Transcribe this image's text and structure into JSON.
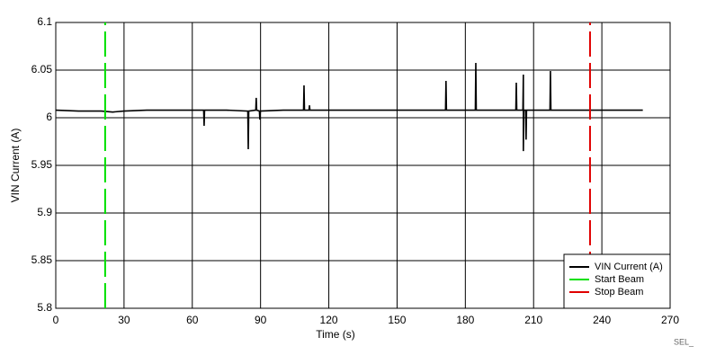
{
  "chart_data": {
    "type": "line",
    "xlabel": "Time (s)",
    "ylabel": "VIN Current (A)",
    "annotation": "SEL_",
    "xlim": [
      0,
      270
    ],
    "xticks": [
      0,
      30,
      60,
      90,
      120,
      150,
      180,
      210,
      240,
      270
    ],
    "ylim": [
      5.8,
      6.1
    ],
    "yticks": [
      6.1,
      6.05,
      6,
      5.95,
      5.9,
      5.85,
      5.8
    ],
    "grid": true,
    "legend": "lower right",
    "series": [
      {
        "name": "VIN Current (A)",
        "color": "#000000",
        "dashed": false,
        "x": [
          0,
          10,
          20,
          25,
          30,
          40,
          50,
          60,
          65,
          65.2,
          65.4,
          75,
          84.4,
          84.6,
          84.8,
          87.9,
          88.1,
          88.3,
          89.5,
          89.7,
          89.9,
          100,
          108.9,
          109.1,
          109.3,
          111.3,
          111.5,
          111.7,
          130,
          150,
          171.3,
          171.5,
          171.7,
          184.4,
          184.6,
          184.8,
          202.2,
          202.4,
          202.6,
          205.3,
          205.5,
          205.5,
          205.7,
          206.5,
          206.7,
          206.9,
          217.2,
          217.4,
          217.6,
          230,
          258
        ],
        "values": [
          6.008,
          6.007,
          6.007,
          6.006,
          6.007,
          6.008,
          6.008,
          6.008,
          6.008,
          5.9915,
          6.008,
          6.008,
          6.007,
          5.967,
          6.007,
          6.008,
          6.0208,
          6.008,
          6.007,
          5.998,
          6.007,
          6.008,
          6.008,
          6.034,
          6.008,
          6.008,
          6.013,
          6.008,
          6.008,
          6.008,
          6.008,
          6.0387,
          6.008,
          6.008,
          6.0575,
          6.008,
          6.008,
          6.0368,
          6.008,
          6.008,
          6.0453,
          5.965,
          6.008,
          6.008,
          5.977,
          6.008,
          6.008,
          6.049,
          6.008,
          6.008,
          6.008
        ]
      },
      {
        "name": "Start Beam",
        "color": "#00e000",
        "dashed": true,
        "x": [
          21.7,
          21.7
        ],
        "values": [
          5.8,
          6.1
        ]
      },
      {
        "name": "Stop Beam",
        "color": "#e00000",
        "dashed": true,
        "x": [
          234.8,
          234.8
        ],
        "values": [
          5.8,
          6.1
        ]
      }
    ]
  }
}
